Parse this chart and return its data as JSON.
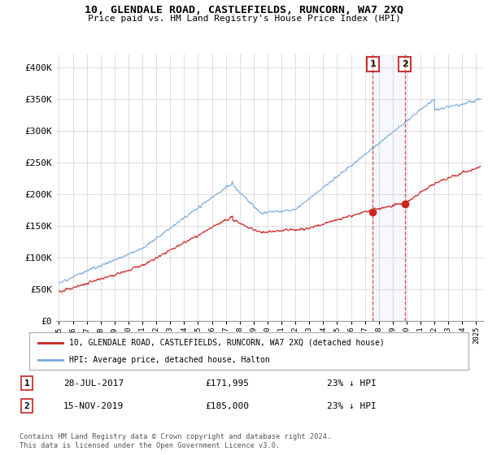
{
  "title": "10, GLENDALE ROAD, CASTLEFIELDS, RUNCORN, WA7 2XQ",
  "subtitle": "Price paid vs. HM Land Registry's House Price Index (HPI)",
  "ylabel_ticks": [
    "£0",
    "£50K",
    "£100K",
    "£150K",
    "£200K",
    "£250K",
    "£300K",
    "£350K",
    "£400K"
  ],
  "ylabel_values": [
    0,
    50000,
    100000,
    150000,
    200000,
    250000,
    300000,
    350000,
    400000
  ],
  "ylim": [
    0,
    420000
  ],
  "xlim_start": 1994.8,
  "xlim_end": 2025.5,
  "hpi_color": "#7aaadd",
  "price_color": "#cc2222",
  "background_color": "#ffffff",
  "grid_color": "#dddddd",
  "ann1_x": 2017.57,
  "ann1_y": 171995,
  "ann2_x": 2019.87,
  "ann2_y": 185000,
  "legend_line1": "10, GLENDALE ROAD, CASTLEFIELDS, RUNCORN, WA7 2XQ (detached house)",
  "legend_line2": "HPI: Average price, detached house, Halton",
  "footnote": "Contains HM Land Registry data © Crown copyright and database right 2024.\nThis data is licensed under the Open Government Licence v3.0.",
  "table_rows": [
    [
      "1",
      "28-JUL-2017",
      "£171,995",
      "23% ↓ HPI"
    ],
    [
      "2",
      "15-NOV-2019",
      "£185,000",
      "23% ↓ HPI"
    ]
  ]
}
